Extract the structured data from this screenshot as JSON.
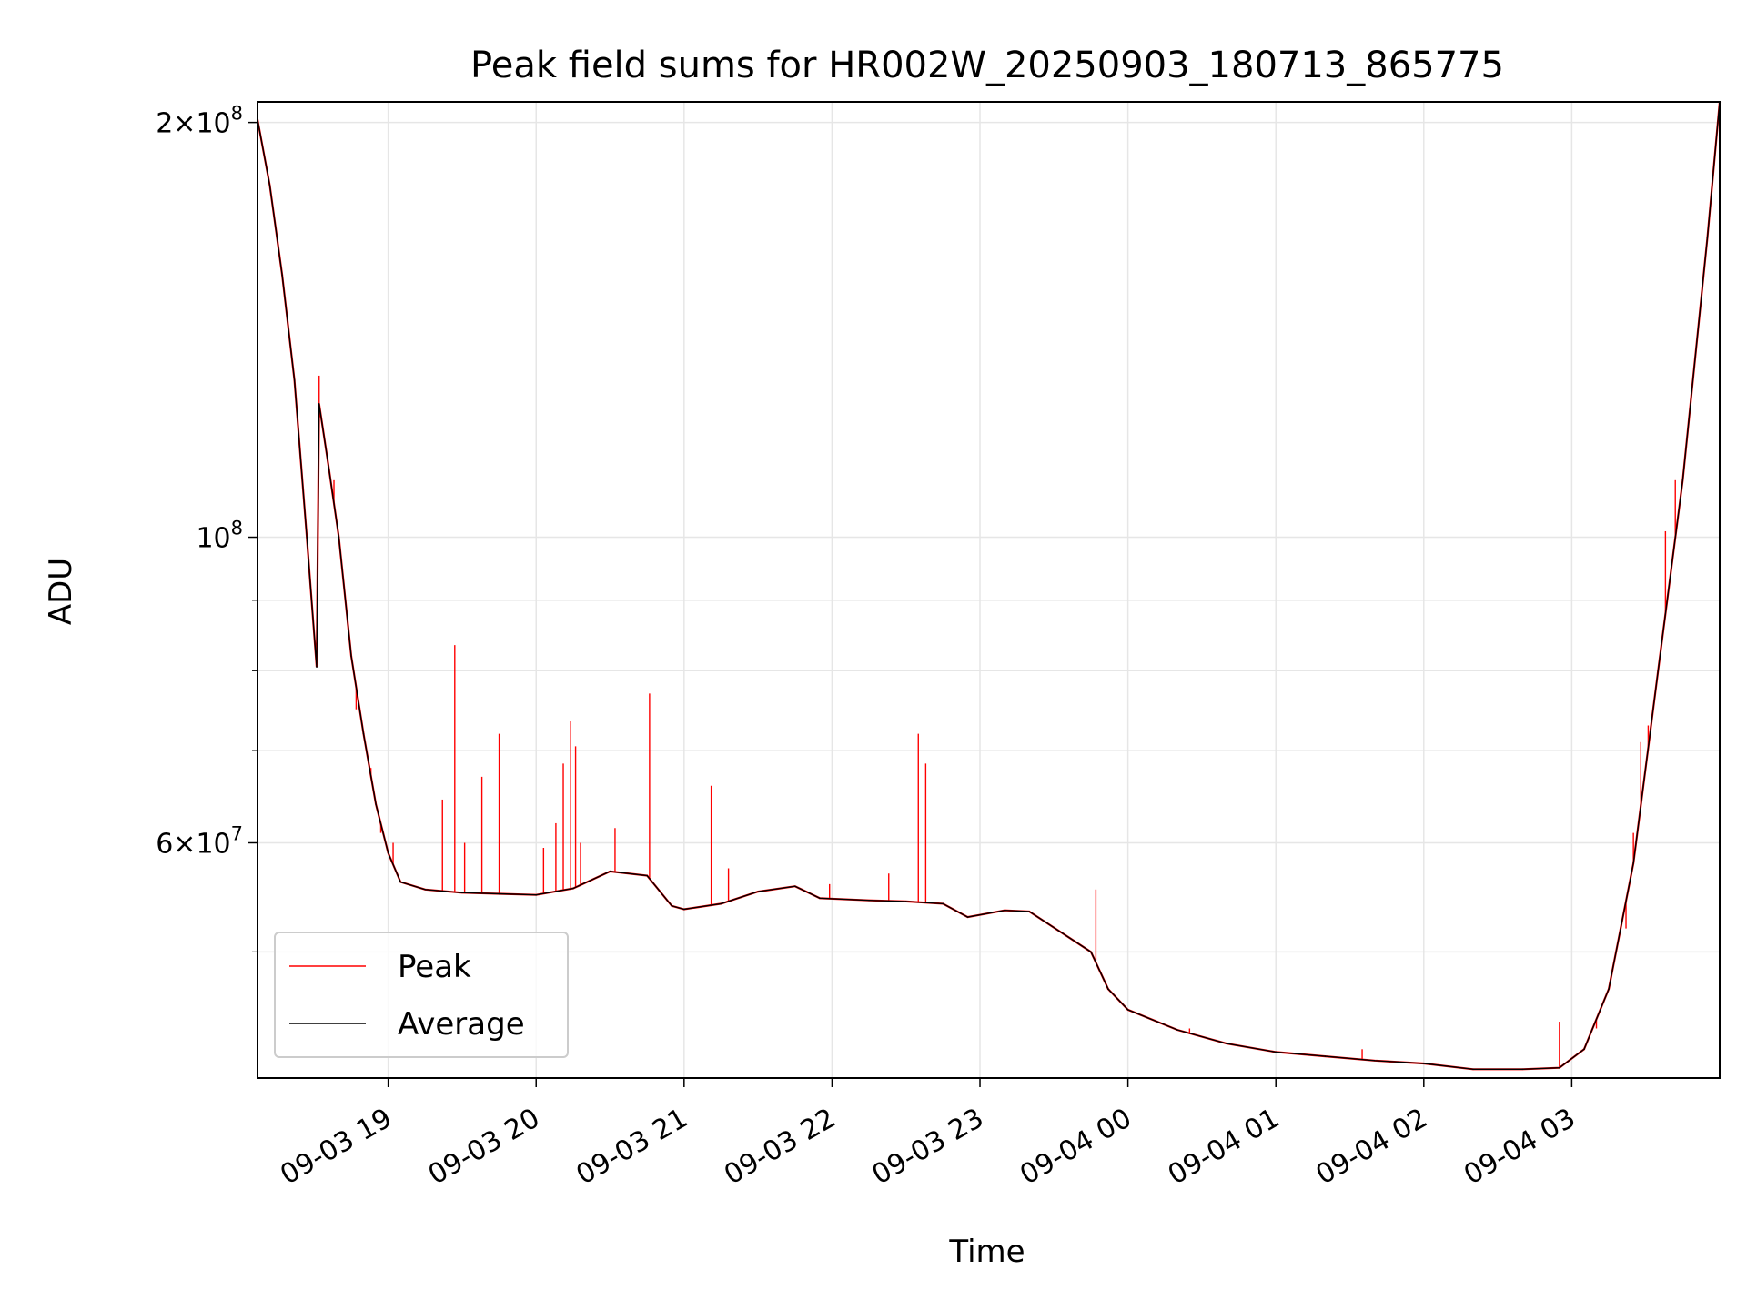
{
  "chart_data": {
    "type": "line",
    "title": "Peak field sums for HR002W_20250903_180713_865775",
    "xlabel": "Time",
    "ylabel": "ADU",
    "yscale": "log",
    "ylim": [
      40500000,
      207000000
    ],
    "xlim_hours_from": "09-03 18:07",
    "x_ticks": [
      "09-03 19",
      "09-03 20",
      "09-03 21",
      "09-03 22",
      "09-03 23",
      "09-04 00",
      "09-04 01",
      "09-04 02",
      "09-04 03"
    ],
    "y_major_ticks": [
      {
        "value": 60000000,
        "mantissa": "6",
        "exponent": "7"
      },
      {
        "value": 100000000,
        "mantissa": "",
        "exponent": "8"
      },
      {
        "value": 200000000,
        "mantissa": "2",
        "exponent": "8"
      }
    ],
    "y_minor_ticks": [
      50000000,
      70000000,
      80000000,
      90000000
    ],
    "grid": true,
    "legend_position": "lower-left",
    "series": [
      {
        "name": "Average",
        "color": "#000000",
        "points": [
          [
            "09-03 18:07",
            201000000
          ],
          [
            "09-03 18:12",
            180000000
          ],
          [
            "09-03 18:17",
            155000000
          ],
          [
            "09-03 18:22",
            130000000
          ],
          [
            "09-03 18:27",
            100000000
          ],
          [
            "09-03 18:31",
            80500000
          ],
          [
            "09-03 18:32",
            125000000
          ],
          [
            "09-03 18:36",
            112000000
          ],
          [
            "09-03 18:40",
            100000000
          ],
          [
            "09-03 18:45",
            82000000
          ],
          [
            "09-03 18:50",
            72000000
          ],
          [
            "09-03 18:55",
            64000000
          ],
          [
            "09-03 19:00",
            59000000
          ],
          [
            "09-03 19:05",
            56200000
          ],
          [
            "09-03 19:15",
            55500000
          ],
          [
            "09-03 19:30",
            55200000
          ],
          [
            "09-03 19:45",
            55100000
          ],
          [
            "09-03 20:00",
            55000000
          ],
          [
            "09-03 20:15",
            55600000
          ],
          [
            "09-03 20:30",
            57200000
          ],
          [
            "09-03 20:45",
            56800000
          ],
          [
            "09-03 20:55",
            54000000
          ],
          [
            "09-03 21:00",
            53700000
          ],
          [
            "09-03 21:15",
            54200000
          ],
          [
            "09-03 21:30",
            55300000
          ],
          [
            "09-03 21:45",
            55800000
          ],
          [
            "09-03 21:55",
            54700000
          ],
          [
            "09-03 22:15",
            54500000
          ],
          [
            "09-03 22:30",
            54400000
          ],
          [
            "09-03 22:45",
            54200000
          ],
          [
            "09-03 22:55",
            53000000
          ],
          [
            "09-03 23:10",
            53600000
          ],
          [
            "09-03 23:20",
            53500000
          ],
          [
            "09-03 23:45",
            50000000
          ],
          [
            "09-03 23:52",
            47000000
          ],
          [
            "09-04 00:00",
            45400000
          ],
          [
            "09-04 00:20",
            43900000
          ],
          [
            "09-04 00:40",
            42900000
          ],
          [
            "09-04 01:00",
            42300000
          ],
          [
            "09-04 01:20",
            42000000
          ],
          [
            "09-04 01:40",
            41700000
          ],
          [
            "09-04 02:00",
            41500000
          ],
          [
            "09-04 02:20",
            41100000
          ],
          [
            "09-04 02:40",
            41100000
          ],
          [
            "09-04 02:55",
            41200000
          ],
          [
            "09-04 03:05",
            42500000
          ],
          [
            "09-04 03:15",
            47000000
          ],
          [
            "09-04 03:25",
            58000000
          ],
          [
            "09-04 03:35",
            80000000
          ],
          [
            "09-04 03:45",
            110000000
          ],
          [
            "09-04 03:55",
            165000000
          ],
          [
            "09-04 04:00",
            207000000
          ]
        ]
      },
      {
        "name": "Peak",
        "color": "#ff0000",
        "spikes": [
          [
            "09-03 18:32",
            131000000
          ],
          [
            "09-03 18:38",
            110000000
          ],
          [
            "09-03 18:47",
            75000000
          ],
          [
            "09-03 18:53",
            68000000
          ],
          [
            "09-03 18:57",
            61000000
          ],
          [
            "09-03 19:02",
            60000000
          ],
          [
            "09-03 19:22",
            64500000
          ],
          [
            "09-03 19:27",
            83500000
          ],
          [
            "09-03 19:31",
            60000000
          ],
          [
            "09-03 19:38",
            67000000
          ],
          [
            "09-03 19:45",
            72000000
          ],
          [
            "09-03 20:03",
            59500000
          ],
          [
            "09-03 20:08",
            62000000
          ],
          [
            "09-03 20:11",
            68500000
          ],
          [
            "09-03 20:14",
            73500000
          ],
          [
            "09-03 20:16",
            70500000
          ],
          [
            "09-03 20:18",
            60000000
          ],
          [
            "09-03 20:32",
            61500000
          ],
          [
            "09-03 20:46",
            77000000
          ],
          [
            "09-03 21:11",
            66000000
          ],
          [
            "09-03 21:18",
            57500000
          ],
          [
            "09-03 21:59",
            56000000
          ],
          [
            "09-03 22:23",
            57000000
          ],
          [
            "09-03 22:35",
            72000000
          ],
          [
            "09-03 22:38",
            68500000
          ],
          [
            "09-03 23:47",
            55500000
          ],
          [
            "09-04 00:25",
            44000000
          ],
          [
            "09-04 01:35",
            42500000
          ],
          [
            "09-04 02:55",
            44500000
          ],
          [
            "09-04 03:10",
            44000000
          ],
          [
            "09-04 03:22",
            52000000
          ],
          [
            "09-04 03:25",
            61000000
          ],
          [
            "09-04 03:28",
            71000000
          ],
          [
            "09-04 03:31",
            73000000
          ],
          [
            "09-04 03:38",
            101000000
          ],
          [
            "09-04 03:42",
            110000000
          ]
        ]
      }
    ]
  }
}
